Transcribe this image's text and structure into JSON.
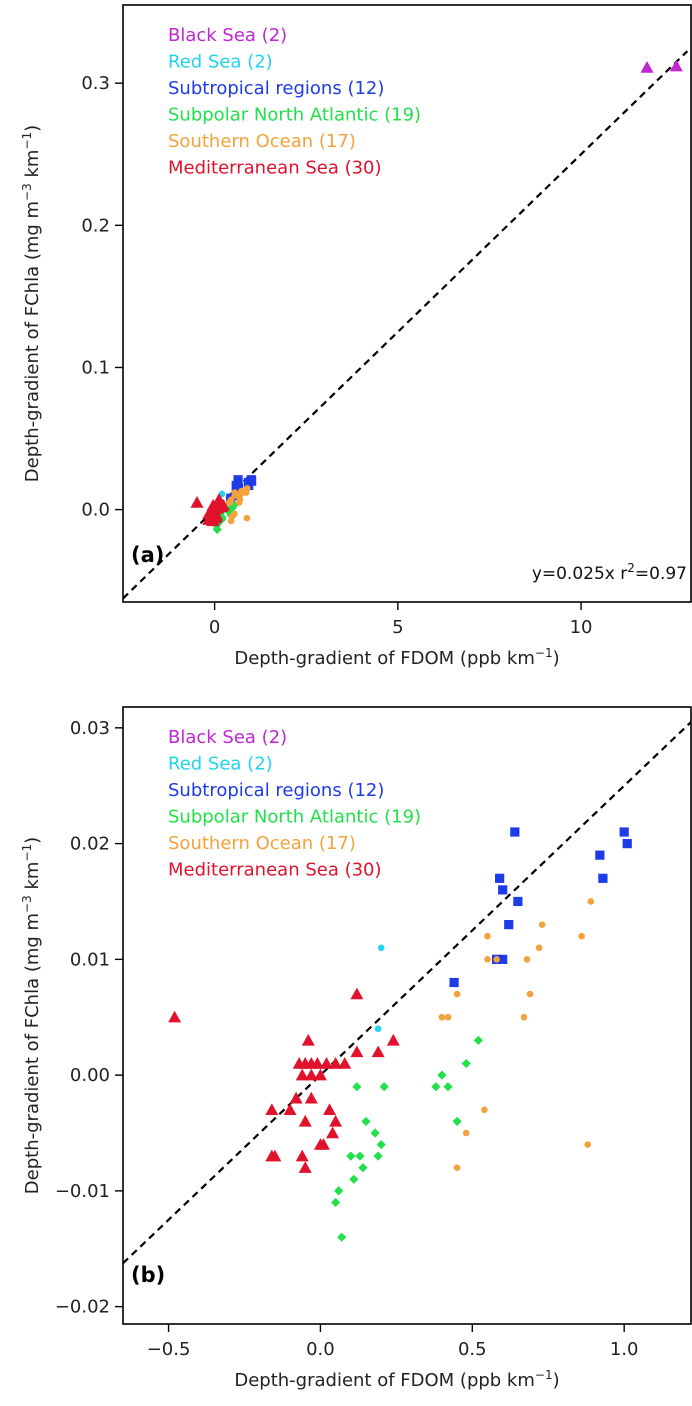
{
  "colors": {
    "black_sea": "#c026d3",
    "red_sea": "#22d3ee",
    "subtropical": "#1d3be6",
    "subpolar": "#22e04a",
    "southern": "#f4a23c",
    "mediterranean": "#e0122c"
  },
  "chart_data": [
    {
      "type": "scatter",
      "panel_label": "(a)",
      "xlabel": "Depth-gradient of FDOM (ppb km",
      "xlabel_sup": "−1",
      "xlabel_close": ")",
      "ylabel_pre": "Depth-gradient of FChla (mg m",
      "ylabel_sup1": "−3",
      "ylabel_mid": " km",
      "ylabel_sup2": "−1",
      "ylabel_close": ")",
      "xlim": [
        -2.5,
        13
      ],
      "ylim": [
        -0.065,
        0.355
      ],
      "xticks": [
        {
          "v": 0,
          "label": "0"
        },
        {
          "v": 5,
          "label": "5"
        },
        {
          "v": 10,
          "label": "10"
        }
      ],
      "yticks": [
        {
          "v": 0.0,
          "label": "0.0"
        },
        {
          "v": 0.1,
          "label": "0.1"
        },
        {
          "v": 0.2,
          "label": "0.2"
        },
        {
          "v": 0.3,
          "label": "0.3"
        }
      ],
      "annotation": {
        "pre": "y=0.025x r",
        "sup": "2",
        "post": "=0.97"
      },
      "fit_line": {
        "slope": 0.025,
        "x_range": [
          -2.5,
          12.9
        ]
      },
      "legend": [
        {
          "label": "Black Sea (2)",
          "key": "black_sea"
        },
        {
          "label": "Red Sea (2)",
          "key": "red_sea"
        },
        {
          "label": "Subtropical regions (12)",
          "key": "subtropical"
        },
        {
          "label": "Subpolar North Atlantic (19)",
          "key": "subpolar"
        },
        {
          "label": "Southern Ocean (17)",
          "key": "southern"
        },
        {
          "label": "Mediterranean Sea (30)",
          "key": "mediterranean"
        }
      ],
      "series": [
        {
          "key": "black_sea",
          "marker": "triangle",
          "points": [
            [
              11.8,
              0.311
            ],
            [
              12.6,
              0.312
            ]
          ]
        },
        {
          "key": "red_sea",
          "marker": "circle",
          "points": [
            [
              0.2,
              0.011
            ],
            [
              0.19,
              0.004
            ]
          ]
        },
        {
          "key": "subtropical",
          "marker": "square",
          "points": [
            [
              0.64,
              0.021
            ],
            [
              1.0,
              0.021
            ],
            [
              0.6,
              0.016
            ],
            [
              0.65,
              0.015
            ],
            [
              0.59,
              0.017
            ],
            [
              0.62,
              0.013
            ],
            [
              0.6,
              0.01
            ],
            [
              0.58,
              0.01
            ],
            [
              0.44,
              0.008
            ],
            [
              0.92,
              0.019
            ],
            [
              0.93,
              0.017
            ],
            [
              1.01,
              0.02
            ]
          ]
        },
        {
          "key": "subpolar",
          "marker": "diamond",
          "points": [
            [
              0.52,
              0.003
            ],
            [
              0.48,
              0.001
            ],
            [
              0.4,
              0.0
            ],
            [
              0.42,
              -0.001
            ],
            [
              0.38,
              -0.001
            ],
            [
              0.45,
              -0.004
            ],
            [
              0.15,
              -0.004
            ],
            [
              0.18,
              -0.005
            ],
            [
              0.2,
              -0.006
            ],
            [
              0.12,
              -0.001
            ],
            [
              0.21,
              -0.001
            ],
            [
              0.1,
              -0.007
            ],
            [
              0.13,
              -0.007
            ],
            [
              0.14,
              -0.008
            ],
            [
              0.19,
              -0.007
            ],
            [
              0.11,
              -0.009
            ],
            [
              0.06,
              -0.01
            ],
            [
              0.05,
              -0.011
            ],
            [
              0.07,
              -0.014
            ]
          ]
        },
        {
          "key": "southern",
          "marker": "circle",
          "points": [
            [
              0.73,
              0.013
            ],
            [
              0.68,
              0.01
            ],
            [
              0.72,
              0.011
            ],
            [
              0.55,
              0.012
            ],
            [
              0.55,
              0.01
            ],
            [
              0.58,
              0.01
            ],
            [
              0.89,
              0.015
            ],
            [
              0.86,
              0.012
            ],
            [
              0.69,
              0.007
            ],
            [
              0.67,
              0.005
            ],
            [
              0.45,
              0.007
            ],
            [
              0.42,
              0.005
            ],
            [
              0.4,
              0.005
            ],
            [
              0.54,
              -0.003
            ],
            [
              0.48,
              -0.005
            ],
            [
              0.45,
              -0.008
            ],
            [
              0.88,
              -0.006
            ]
          ]
        },
        {
          "key": "mediterranean",
          "marker": "triangle",
          "points": [
            [
              -0.48,
              0.005
            ],
            [
              0.12,
              0.007
            ],
            [
              0.24,
              0.003
            ],
            [
              0.19,
              0.002
            ],
            [
              -0.04,
              0.003
            ],
            [
              -0.07,
              0.001
            ],
            [
              -0.05,
              0.001
            ],
            [
              -0.03,
              0.001
            ],
            [
              -0.01,
              0.001
            ],
            [
              0.02,
              0.001
            ],
            [
              0.05,
              0.001
            ],
            [
              0.08,
              0.001
            ],
            [
              -0.06,
              0.0
            ],
            [
              -0.03,
              0.0
            ],
            [
              0.0,
              0.0
            ],
            [
              0.12,
              0.002
            ],
            [
              -0.08,
              -0.002
            ],
            [
              -0.03,
              -0.002
            ],
            [
              0.03,
              -0.003
            ],
            [
              -0.16,
              -0.003
            ],
            [
              -0.1,
              -0.003
            ],
            [
              -0.05,
              -0.004
            ],
            [
              0.04,
              -0.005
            ],
            [
              0.05,
              -0.004
            ],
            [
              0.01,
              -0.006
            ],
            [
              0.0,
              -0.006
            ],
            [
              -0.06,
              -0.007
            ],
            [
              -0.05,
              -0.008
            ],
            [
              -0.15,
              -0.007
            ],
            [
              -0.16,
              -0.007
            ]
          ]
        }
      ]
    },
    {
      "type": "scatter",
      "panel_label": "(b)",
      "xlabel": "Depth-gradient of FDOM (ppb km",
      "xlabel_sup": "−1",
      "xlabel_close": ")",
      "ylabel_pre": "Depth-gradient of FChla (mg m",
      "ylabel_sup1": "−3",
      "ylabel_mid": " km",
      "ylabel_sup2": "−1",
      "ylabel_close": ")",
      "xlim": [
        -0.65,
        1.22
      ],
      "ylim": [
        -0.0215,
        0.0318
      ],
      "xticks": [
        {
          "v": -0.5,
          "label": "−0.5"
        },
        {
          "v": 0.0,
          "label": "0.0"
        },
        {
          "v": 0.5,
          "label": "0.5"
        },
        {
          "v": 1.0,
          "label": "1.0"
        }
      ],
      "yticks": [
        {
          "v": -0.02,
          "label": "−0.02"
        },
        {
          "v": -0.01,
          "label": "−0.01"
        },
        {
          "v": 0.0,
          "label": "0.00"
        },
        {
          "v": 0.01,
          "label": "0.01"
        },
        {
          "v": 0.02,
          "label": "0.02"
        },
        {
          "v": 0.03,
          "label": "0.03"
        }
      ],
      "fit_line": {
        "slope": 0.025,
        "x_range": [
          -0.65,
          1.22
        ]
      },
      "legend": [
        {
          "label": "Black Sea (2)",
          "key": "black_sea"
        },
        {
          "label": "Red Sea (2)",
          "key": "red_sea"
        },
        {
          "label": "Subtropical regions (12)",
          "key": "subtropical"
        },
        {
          "label": "Subpolar North Atlantic (19)",
          "key": "subpolar"
        },
        {
          "label": "Southern Ocean (17)",
          "key": "southern"
        },
        {
          "label": "Mediterranean Sea (30)",
          "key": "mediterranean"
        }
      ],
      "series": [
        {
          "key": "red_sea",
          "marker": "circle",
          "points": [
            [
              0.2,
              0.011
            ],
            [
              0.19,
              0.004
            ]
          ]
        },
        {
          "key": "subtropical",
          "marker": "square",
          "points": [
            [
              0.64,
              0.021
            ],
            [
              1.0,
              0.021
            ],
            [
              1.01,
              0.02
            ],
            [
              0.92,
              0.019
            ],
            [
              0.93,
              0.017
            ],
            [
              0.59,
              0.017
            ],
            [
              0.6,
              0.016
            ],
            [
              0.65,
              0.015
            ],
            [
              0.62,
              0.013
            ],
            [
              0.58,
              0.01
            ],
            [
              0.6,
              0.01
            ],
            [
              0.44,
              0.008
            ]
          ]
        },
        {
          "key": "subpolar",
          "marker": "diamond",
          "points": [
            [
              0.52,
              0.003
            ],
            [
              0.48,
              0.001
            ],
            [
              0.4,
              0.0
            ],
            [
              0.42,
              -0.001
            ],
            [
              0.38,
              -0.001
            ],
            [
              0.45,
              -0.004
            ],
            [
              0.15,
              -0.004
            ],
            [
              0.18,
              -0.005
            ],
            [
              0.2,
              -0.006
            ],
            [
              0.12,
              -0.001
            ],
            [
              0.21,
              -0.001
            ],
            [
              0.1,
              -0.007
            ],
            [
              0.13,
              -0.007
            ],
            [
              0.14,
              -0.008
            ],
            [
              0.19,
              -0.007
            ],
            [
              0.11,
              -0.009
            ],
            [
              0.06,
              -0.01
            ],
            [
              0.05,
              -0.011
            ],
            [
              0.07,
              -0.014
            ]
          ]
        },
        {
          "key": "southern",
          "marker": "circle",
          "points": [
            [
              0.73,
              0.013
            ],
            [
              0.68,
              0.01
            ],
            [
              0.72,
              0.011
            ],
            [
              0.55,
              0.012
            ],
            [
              0.55,
              0.01
            ],
            [
              0.58,
              0.01
            ],
            [
              0.89,
              0.015
            ],
            [
              0.86,
              0.012
            ],
            [
              0.69,
              0.007
            ],
            [
              0.67,
              0.005
            ],
            [
              0.45,
              0.007
            ],
            [
              0.42,
              0.005
            ],
            [
              0.4,
              0.005
            ],
            [
              0.54,
              -0.003
            ],
            [
              0.48,
              -0.005
            ],
            [
              0.45,
              -0.008
            ],
            [
              0.88,
              -0.006
            ]
          ]
        },
        {
          "key": "mediterranean",
          "marker": "triangle",
          "points": [
            [
              -0.48,
              0.005
            ],
            [
              0.12,
              0.007
            ],
            [
              0.24,
              0.003
            ],
            [
              0.19,
              0.002
            ],
            [
              -0.04,
              0.003
            ],
            [
              -0.07,
              0.001
            ],
            [
              -0.05,
              0.001
            ],
            [
              -0.03,
              0.001
            ],
            [
              -0.01,
              0.001
            ],
            [
              0.02,
              0.001
            ],
            [
              0.05,
              0.001
            ],
            [
              0.08,
              0.001
            ],
            [
              -0.06,
              0.0
            ],
            [
              -0.03,
              0.0
            ],
            [
              0.0,
              0.0
            ],
            [
              0.12,
              0.002
            ],
            [
              -0.08,
              -0.002
            ],
            [
              -0.03,
              -0.002
            ],
            [
              0.03,
              -0.003
            ],
            [
              -0.16,
              -0.003
            ],
            [
              -0.1,
              -0.003
            ],
            [
              -0.05,
              -0.004
            ],
            [
              0.04,
              -0.005
            ],
            [
              0.05,
              -0.004
            ],
            [
              0.01,
              -0.006
            ],
            [
              0.0,
              -0.006
            ],
            [
              -0.06,
              -0.007
            ],
            [
              -0.05,
              -0.008
            ],
            [
              -0.15,
              -0.007
            ],
            [
              -0.16,
              -0.007
            ]
          ]
        }
      ]
    }
  ]
}
